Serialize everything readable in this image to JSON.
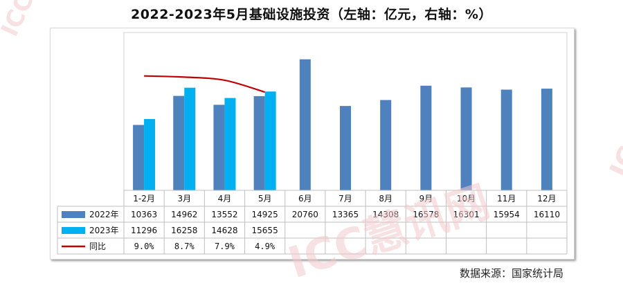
{
  "chart_data": {
    "type": "bar",
    "title": "2022-2023年5月基础设施投资（左轴：亿元，右轴：%）",
    "categories": [
      "1-2月",
      "3月",
      "4月",
      "5月",
      "6月",
      "7月",
      "8月",
      "9月",
      "10月",
      "11月",
      "12月"
    ],
    "series": [
      {
        "name": "2022年",
        "type": "bar",
        "color": "#4f81bd",
        "values": [
          10363,
          14962,
          13552,
          14925,
          20760,
          13365,
          14308,
          16578,
          16301,
          15954,
          16110
        ]
      },
      {
        "name": "2023年",
        "type": "bar",
        "color": "#00b0f0",
        "values": [
          11296,
          16258,
          14628,
          15655,
          null,
          null,
          null,
          null,
          null,
          null,
          null
        ]
      },
      {
        "name": "同比",
        "type": "line",
        "axis": "right",
        "color": "#c00000",
        "values": [
          9.0,
          8.7,
          7.9,
          4.9,
          null,
          null,
          null,
          null,
          null,
          null,
          null
        ]
      }
    ],
    "table_rows": [
      {
        "label": "2022年",
        "cells": [
          "10363",
          "14962",
          "13552",
          "14925",
          "20760",
          "13365",
          "14308",
          "16578",
          "16301",
          "15954",
          "16110"
        ]
      },
      {
        "label": "2023年",
        "cells": [
          "11296",
          "16258",
          "14628",
          "15655",
          "",
          "",
          "",
          "",
          "",
          "",
          ""
        ]
      },
      {
        "label": "同比",
        "cells": [
          "9.0%",
          "8.7%",
          "7.9%",
          "4.9%",
          "",
          "",
          "",
          "",
          "",
          "",
          ""
        ]
      }
    ],
    "ylim": [
      0,
      25000
    ],
    "y2lim": [
      -20,
      20
    ],
    "grid": false,
    "legend": "data-table"
  },
  "source": "数据来源：国家统计局",
  "watermark": "ICC慧讯网"
}
